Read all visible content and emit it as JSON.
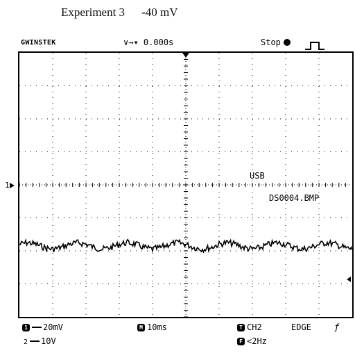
{
  "caption": {
    "experiment": "Experiment 3",
    "voltage": "-40 mV"
  },
  "scope": {
    "brand": "GWINSTEK",
    "timebase_arrows": "∨→▾",
    "trigger_delay": "0.000s",
    "run_state": "Stop",
    "usb_label": "USB",
    "file_name": "DS0004.BMP",
    "ch1_marker": "1",
    "grid": {
      "divisions_x": 10,
      "divisions_y": 8
    }
  },
  "footer": {
    "ch1_badge": "1",
    "ch1_scale": "20mV",
    "ch2_num": "2",
    "ch2_scale": "10V",
    "time_badge": "M",
    "timebase": "10ms",
    "trig_badge": "T",
    "trig_source": "CH2",
    "trig_type": "EDGE",
    "trig_slope": "ƒ",
    "freq_badge": "F",
    "frequency": "<2Hz"
  },
  "chart_data": {
    "type": "line",
    "series": [
      {
        "name": "",
        "description_units": "divisions relative to CH1 ground",
        "x_div": [
          0.0,
          0.25,
          0.5,
          0.75,
          1.0,
          1.25,
          1.5,
          1.75,
          2.0,
          2.25,
          2.5,
          2.75,
          3.0,
          3.25,
          3.5,
          3.75,
          4.0,
          4.25,
          4.5,
          4.75,
          5.0,
          5.25,
          5.5,
          5.75,
          6.0,
          6.25,
          6.5,
          6.75,
          7.0,
          7.25,
          7.5,
          7.75,
          8.0,
          8.25,
          8.5,
          8.75,
          9.0,
          9.25,
          9.5,
          9.75,
          10.0
        ],
        "y_div": [
          -1.8,
          -1.75,
          -1.8,
          -1.9,
          -1.95,
          -1.9,
          -1.8,
          -1.75,
          -1.8,
          -1.9,
          -1.95,
          -1.9,
          -1.8,
          -1.75,
          -1.8,
          -1.9,
          -1.95,
          -1.9,
          -1.8,
          -1.75,
          -1.8,
          -1.9,
          -1.95,
          -1.9,
          -1.8,
          -1.75,
          -1.8,
          -1.9,
          -1.95,
          -1.9,
          -1.8,
          -1.75,
          -1.8,
          -1.9,
          -1.95,
          -1.9,
          -1.8,
          -1.75,
          -1.8,
          -1.9,
          -1.95
        ]
      }
    ]
  }
}
